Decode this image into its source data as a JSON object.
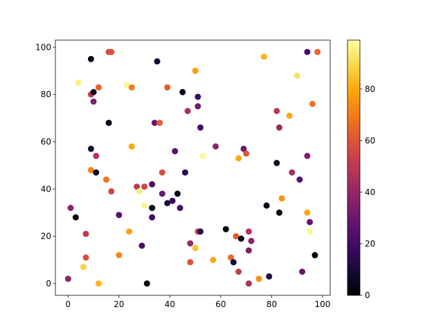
{
  "chart_data": {
    "type": "scatter",
    "title": "",
    "xlabel": "",
    "ylabel": "",
    "xlim": [
      -5,
      103
    ],
    "ylim": [
      -5,
      103
    ],
    "xticks": [
      0,
      20,
      40,
      60,
      80,
      100
    ],
    "yticks": [
      0,
      20,
      40,
      60,
      80,
      100
    ],
    "grid": false,
    "colormap": "inferno",
    "colorbar": {
      "range": [
        0,
        99
      ],
      "ticks": [
        0,
        20,
        40,
        60,
        80
      ]
    },
    "points": [
      {
        "x": 9,
        "y": 95,
        "c": 2
      },
      {
        "x": 4,
        "y": 85,
        "c": 95
      },
      {
        "x": 16,
        "y": 98,
        "c": 55
      },
      {
        "x": 17,
        "y": 98,
        "c": 60
      },
      {
        "x": 35,
        "y": 94,
        "c": 8
      },
      {
        "x": 77,
        "y": 96,
        "c": 82
      },
      {
        "x": 94,
        "y": 98,
        "c": 22
      },
      {
        "x": 98,
        "y": 98,
        "c": 65
      },
      {
        "x": 50,
        "y": 90,
        "c": 78
      },
      {
        "x": 90,
        "y": 88,
        "c": 92
      },
      {
        "x": 23,
        "y": 84,
        "c": 97
      },
      {
        "x": 12,
        "y": 83,
        "c": 63
      },
      {
        "x": 25,
        "y": 83,
        "c": 70
      },
      {
        "x": 39,
        "y": 83,
        "c": 62
      },
      {
        "x": 45,
        "y": 81,
        "c": 4
      },
      {
        "x": 9,
        "y": 80,
        "c": 52
      },
      {
        "x": 10,
        "y": 81,
        "c": 5
      },
      {
        "x": 10,
        "y": 77,
        "c": 35
      },
      {
        "x": 51,
        "y": 79,
        "c": 18
      },
      {
        "x": 51,
        "y": 75,
        "c": 32
      },
      {
        "x": 47,
        "y": 73,
        "c": 45
      },
      {
        "x": 82,
        "y": 73,
        "c": 50
      },
      {
        "x": 87,
        "y": 71,
        "c": 80
      },
      {
        "x": 96,
        "y": 76,
        "c": 68
      },
      {
        "x": 16,
        "y": 68,
        "c": 3
      },
      {
        "x": 34,
        "y": 68,
        "c": 28
      },
      {
        "x": 36,
        "y": 68,
        "c": 62
      },
      {
        "x": 52,
        "y": 66,
        "c": 20
      },
      {
        "x": 83,
        "y": 66,
        "c": 42
      },
      {
        "x": 9,
        "y": 57,
        "c": 8
      },
      {
        "x": 25,
        "y": 58,
        "c": 80
      },
      {
        "x": 58,
        "y": 58,
        "c": 38
      },
      {
        "x": 69,
        "y": 57,
        "c": 30
      },
      {
        "x": 70,
        "y": 55,
        "c": 60
      },
      {
        "x": 11,
        "y": 54,
        "c": 48
      },
      {
        "x": 42,
        "y": 56,
        "c": 25
      },
      {
        "x": 53,
        "y": 54,
        "c": 97
      },
      {
        "x": 67,
        "y": 53,
        "c": 80
      },
      {
        "x": 94,
        "y": 54,
        "c": 35
      },
      {
        "x": 82,
        "y": 51,
        "c": 5
      },
      {
        "x": 9,
        "y": 48,
        "c": 72
      },
      {
        "x": 11,
        "y": 47,
        "c": 4
      },
      {
        "x": 37,
        "y": 47,
        "c": 58
      },
      {
        "x": 46,
        "y": 47,
        "c": 15
      },
      {
        "x": 88,
        "y": 47,
        "c": 45
      },
      {
        "x": 15,
        "y": 44,
        "c": 68
      },
      {
        "x": 91,
        "y": 44,
        "c": 25
      },
      {
        "x": 33,
        "y": 42,
        "c": 22
      },
      {
        "x": 27,
        "y": 41,
        "c": 50
      },
      {
        "x": 30,
        "y": 41,
        "c": 55
      },
      {
        "x": 17,
        "y": 39,
        "c": 55
      },
      {
        "x": 28,
        "y": 39,
        "c": 95
      },
      {
        "x": 37,
        "y": 38,
        "c": 30
      },
      {
        "x": 43,
        "y": 38,
        "c": 3
      },
      {
        "x": 84,
        "y": 36,
        "c": 75
      },
      {
        "x": 39,
        "y": 34,
        "c": 10
      },
      {
        "x": 41,
        "y": 35,
        "c": 18
      },
      {
        "x": 30,
        "y": 33,
        "c": 96
      },
      {
        "x": 33,
        "y": 32,
        "c": 2
      },
      {
        "x": 44,
        "y": 32,
        "c": 22
      },
      {
        "x": 1,
        "y": 32,
        "c": 38
      },
      {
        "x": 78,
        "y": 33,
        "c": 3
      },
      {
        "x": 94,
        "y": 30,
        "c": 80
      },
      {
        "x": 83,
        "y": 30,
        "c": 2
      },
      {
        "x": 3,
        "y": 28,
        "c": 2
      },
      {
        "x": 20,
        "y": 29,
        "c": 25
      },
      {
        "x": 33,
        "y": 28,
        "c": 20
      },
      {
        "x": 95,
        "y": 26,
        "c": 28
      },
      {
        "x": 62,
        "y": 23,
        "c": 2
      },
      {
        "x": 7,
        "y": 21,
        "c": 50
      },
      {
        "x": 24,
        "y": 22,
        "c": 78
      },
      {
        "x": 51,
        "y": 22,
        "c": 55
      },
      {
        "x": 52,
        "y": 22,
        "c": 12
      },
      {
        "x": 71,
        "y": 22,
        "c": 48
      },
      {
        "x": 95,
        "y": 22,
        "c": 97
      },
      {
        "x": 66,
        "y": 20,
        "c": 62
      },
      {
        "x": 68,
        "y": 19,
        "c": 3
      },
      {
        "x": 72,
        "y": 18,
        "c": 38
      },
      {
        "x": 29,
        "y": 16,
        "c": 22
      },
      {
        "x": 48,
        "y": 17,
        "c": 40
      },
      {
        "x": 50,
        "y": 15,
        "c": 85
      },
      {
        "x": 71,
        "y": 14,
        "c": 35
      },
      {
        "x": 20,
        "y": 12,
        "c": 72
      },
      {
        "x": 7,
        "y": 11,
        "c": 58
      },
      {
        "x": 57,
        "y": 10,
        "c": 80
      },
      {
        "x": 64,
        "y": 11,
        "c": 65
      },
      {
        "x": 65,
        "y": 9,
        "c": 10
      },
      {
        "x": 48,
        "y": 9,
        "c": 60
      },
      {
        "x": 6,
        "y": 7,
        "c": 88
      },
      {
        "x": 67,
        "y": 5,
        "c": 52
      },
      {
        "x": 92,
        "y": 5,
        "c": 30
      },
      {
        "x": 75,
        "y": 2,
        "c": 75
      },
      {
        "x": 79,
        "y": 3,
        "c": 12
      },
      {
        "x": 97,
        "y": 12,
        "c": 2
      },
      {
        "x": 0,
        "y": 2,
        "c": 38
      },
      {
        "x": 12,
        "y": 0,
        "c": 82
      },
      {
        "x": 31,
        "y": 0,
        "c": 2
      },
      {
        "x": 71,
        "y": 0,
        "c": 45
      }
    ]
  }
}
